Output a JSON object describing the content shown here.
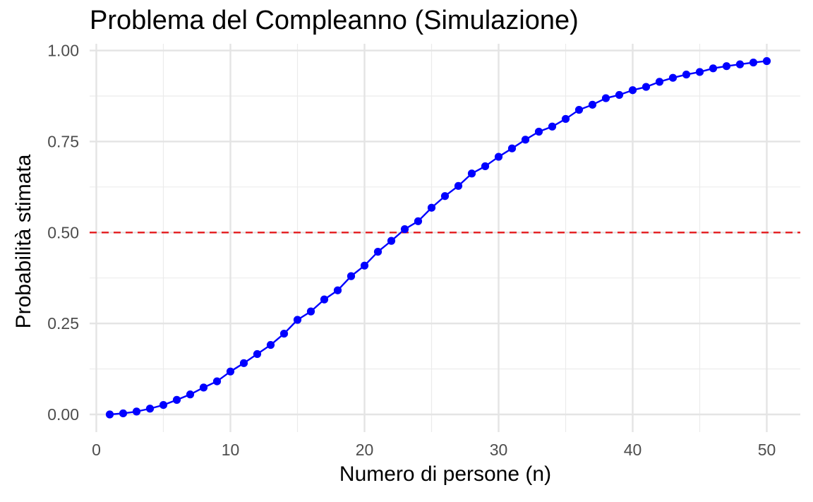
{
  "chart_data": {
    "type": "line",
    "title": "Problema del Compleanno (Simulazione)",
    "xlabel": "Numero di persone (n)",
    "ylabel": "Probabilità stimata",
    "xlim": [
      -0.5,
      52.5
    ],
    "ylim": [
      -0.0485,
      1.0185
    ],
    "x_ticks": [
      0,
      10,
      20,
      30,
      40,
      50
    ],
    "x_tick_labels": [
      "0",
      "10",
      "20",
      "30",
      "40",
      "50"
    ],
    "y_ticks": [
      0,
      0.25,
      0.5,
      0.75,
      1.0
    ],
    "y_tick_labels": [
      "0.00",
      "0.25",
      "0.50",
      "0.75",
      "1.00"
    ],
    "grid": true,
    "legend": "none",
    "reference_line": {
      "y": 0.5,
      "style": "dashed",
      "color": "#e31a1c"
    },
    "series": [
      {
        "color": "#0000ff",
        "x": [
          1,
          2,
          3,
          4,
          5,
          6,
          7,
          8,
          9,
          10,
          11,
          12,
          13,
          14,
          15,
          16,
          17,
          18,
          19,
          20,
          21,
          22,
          23,
          24,
          25,
          26,
          27,
          28,
          29,
          30,
          31,
          32,
          33,
          34,
          35,
          36,
          37,
          38,
          39,
          40,
          41,
          42,
          43,
          44,
          45,
          46,
          47,
          48,
          49,
          50
        ],
        "values": [
          0.0,
          0.003,
          0.008,
          0.016,
          0.026,
          0.04,
          0.055,
          0.074,
          0.091,
          0.118,
          0.141,
          0.166,
          0.191,
          0.222,
          0.26,
          0.283,
          0.316,
          0.341,
          0.38,
          0.409,
          0.447,
          0.477,
          0.509,
          0.531,
          0.568,
          0.6,
          0.628,
          0.662,
          0.682,
          0.708,
          0.731,
          0.755,
          0.777,
          0.791,
          0.812,
          0.837,
          0.851,
          0.869,
          0.878,
          0.891,
          0.9,
          0.914,
          0.925,
          0.934,
          0.941,
          0.951,
          0.957,
          0.962,
          0.967,
          0.971
        ]
      }
    ]
  }
}
